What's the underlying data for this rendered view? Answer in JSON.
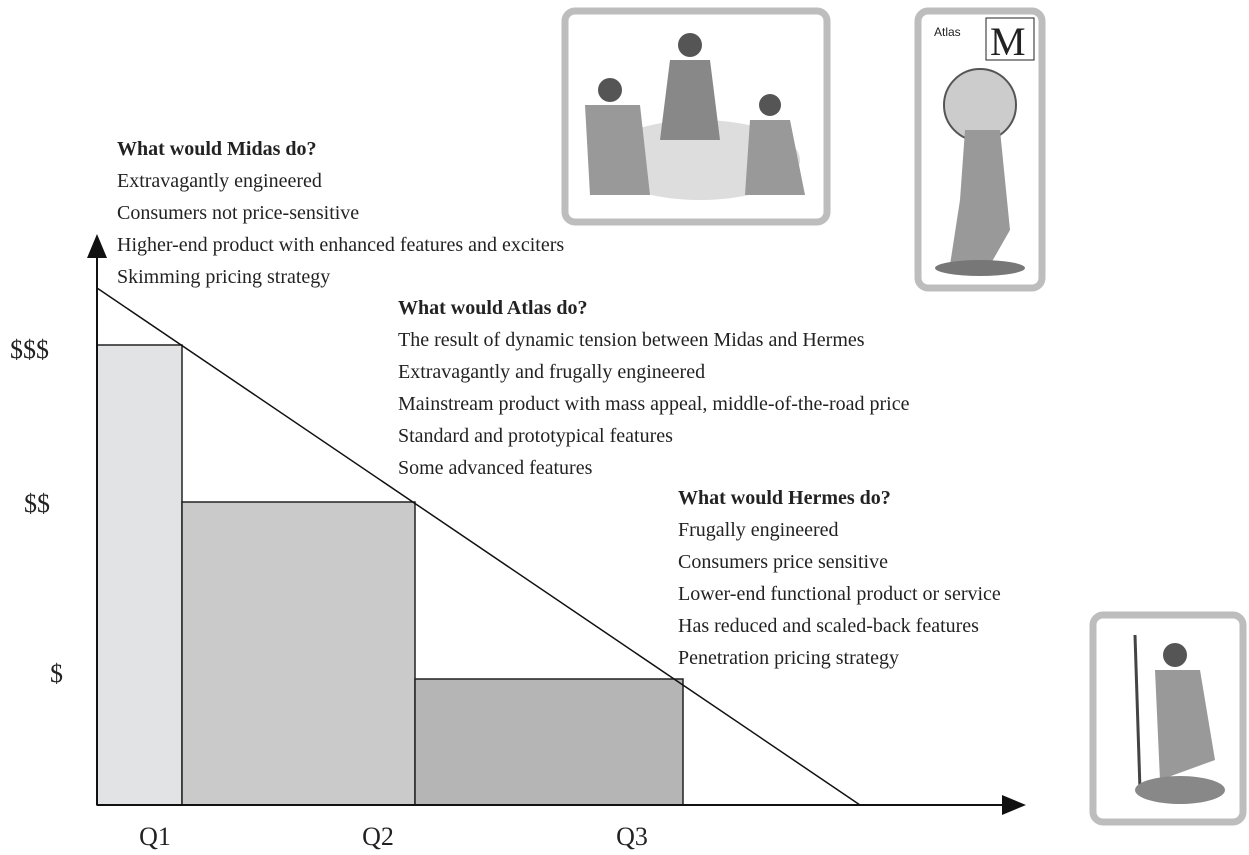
{
  "axis": {
    "y_labels": [
      "$$$",
      "$$",
      "$"
    ],
    "x_labels": [
      "Q1",
      "Q2",
      "Q3"
    ]
  },
  "blocks": [
    {
      "title": "What would Midas do?",
      "lines": [
        "Extravagantly engineered",
        "Consumers not price-sensitive",
        "Higher-end product with enhanced features and exciters",
        "Skimming pricing strategy"
      ]
    },
    {
      "title": "What would Atlas do?",
      "lines": [
        "The result of dynamic tension between Midas and Hermes",
        "Extravagantly and frugally engineered",
        "Mainstream product with mass appeal, middle-of-the-road price",
        "Standard and prototypical features",
        "Some advanced features"
      ]
    },
    {
      "title": "What would Hermes do?",
      "lines": [
        "Frugally engineered",
        "Consumers price sensitive",
        "Lower-end functional product or service",
        "Has reduced and scaled-back features",
        "Penetration pricing strategy"
      ]
    }
  ],
  "atlas_image": {
    "caption": "Atlas",
    "letter": "M"
  }
}
